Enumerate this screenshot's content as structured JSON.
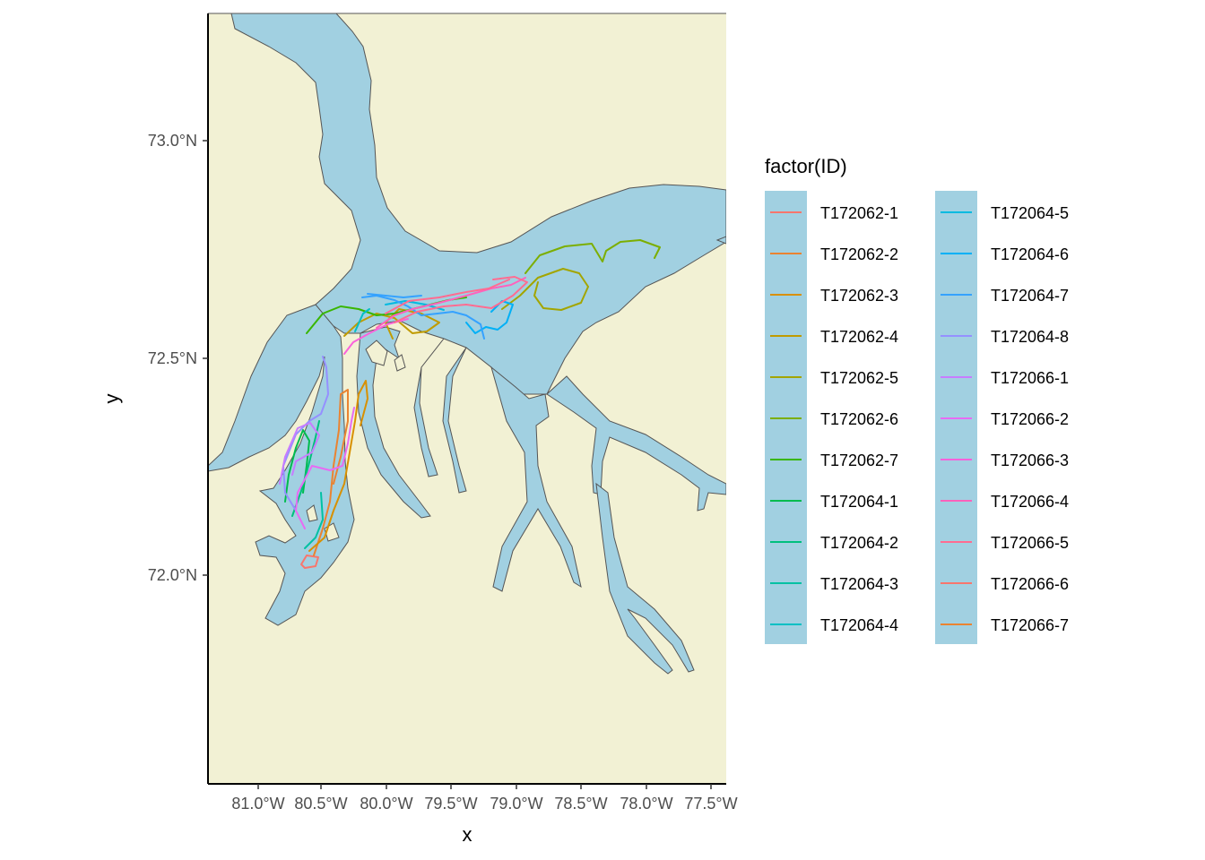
{
  "map": {
    "x_axis_title": "x",
    "y_axis_title": "y",
    "x_ticks": [
      "81.0°W",
      "80.5°W",
      "80.0°W",
      "79.5°W",
      "79.0°W",
      "78.5°W",
      "78.0°W",
      "77.5°W"
    ],
    "y_ticks": [
      "73.0°N",
      "72.5°N",
      "72.0°N"
    ],
    "land_color": "#f2f1d4",
    "water_color": "#a1d0e1"
  },
  "legend": {
    "title": "factor(ID)",
    "placement": "right",
    "key_background": "#a1d0e1",
    "columns": [
      [
        "T172062-1",
        "T172062-2",
        "T172062-3",
        "T172062-4",
        "T172062-5",
        "T172062-6",
        "T172062-7",
        "T172064-1",
        "T172064-2",
        "T172064-3",
        "T172064-4"
      ],
      [
        "T172064-5",
        "T172064-6",
        "T172064-7",
        "T172064-8",
        "T172066-1",
        "T172066-2",
        "T172066-3",
        "T172066-4",
        "T172066-5",
        "T172066-6",
        "T172066-7"
      ]
    ],
    "colors": [
      "#F8766D",
      "#EA8331",
      "#D89000",
      "#C09B00",
      "#A3A500",
      "#7CAE00",
      "#39B600",
      "#00BB4E",
      "#00BF7D",
      "#00C1A3",
      "#00BFC4",
      "#00BAE0",
      "#00B0F6",
      "#35A2FF",
      "#9590FF",
      "#C77CFF",
      "#E76BF3",
      "#FA62DB",
      "#FF62BC",
      "#FF6C91",
      "#F8766D",
      "#EA8331"
    ]
  }
}
